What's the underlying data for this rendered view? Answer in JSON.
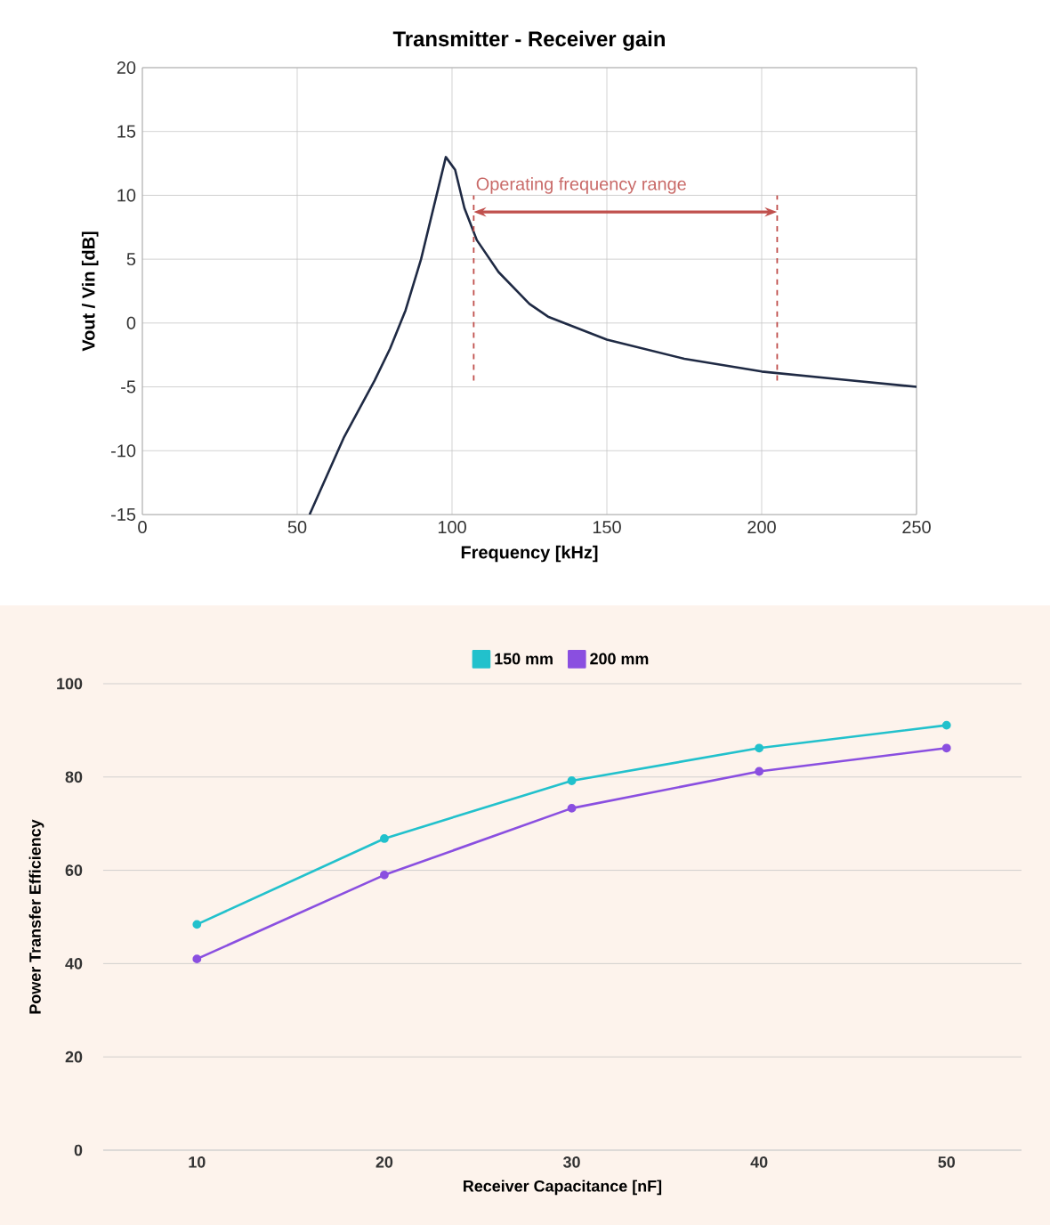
{
  "chart_data": [
    {
      "type": "line",
      "title": "Transmitter  -  Receiver gain",
      "xlabel": "Frequency  [kHz]",
      "ylabel": "Vout / Vin [dB]",
      "x": [
        54,
        65,
        75,
        80,
        85,
        90,
        95,
        98,
        101,
        104,
        108,
        115,
        125,
        131,
        150,
        175,
        200,
        225,
        250
      ],
      "series": [
        {
          "color": "#1f2a44",
          "values": [
            -15,
            -9,
            -4.5,
            -2,
            1,
            5,
            10,
            13,
            12,
            9,
            6.5,
            4,
            1.5,
            0.5,
            -1.3,
            -2.8,
            -3.8,
            -4.4,
            -5
          ]
        }
      ],
      "xlim": [
        0,
        250
      ],
      "ylim": [
        -15,
        20
      ],
      "xticks": [
        0,
        50,
        100,
        150,
        200,
        250
      ],
      "yticks": [
        -15,
        -10,
        -5,
        0,
        5,
        10,
        15,
        20
      ],
      "grid": true,
      "marker": "none",
      "ref_lines": [
        {
          "axis": "x",
          "value": 107,
          "color": "#c0504d",
          "line_style": "dashed"
        },
        {
          "axis": "x",
          "value": 205,
          "color": "#c0504d",
          "line_style": "dashed"
        }
      ],
      "annotations": [
        "Operating frequency range"
      ]
    },
    {
      "type": "line",
      "xlabel": "Receiver Capacitance [nF]",
      "ylabel": "Power Transfer Efficiency",
      "x": [
        10,
        20,
        30,
        40,
        50
      ],
      "series": [
        {
          "name": "150 mm",
          "color": "#22c1cc",
          "values": [
            48.4,
            66.8,
            79.2,
            86.2,
            91.1
          ]
        },
        {
          "name": "200 mm",
          "color": "#8a4fe0",
          "values": [
            41,
            59,
            73.3,
            81.2,
            86.2
          ]
        }
      ],
      "xlim": [
        5,
        54
      ],
      "ylim": [
        0,
        100
      ],
      "xticks": [
        10,
        20,
        30,
        40,
        50
      ],
      "yticks": [
        0,
        20,
        40,
        60,
        80,
        100
      ],
      "grid": "y",
      "legend": "top",
      "marker": "circle"
    }
  ]
}
